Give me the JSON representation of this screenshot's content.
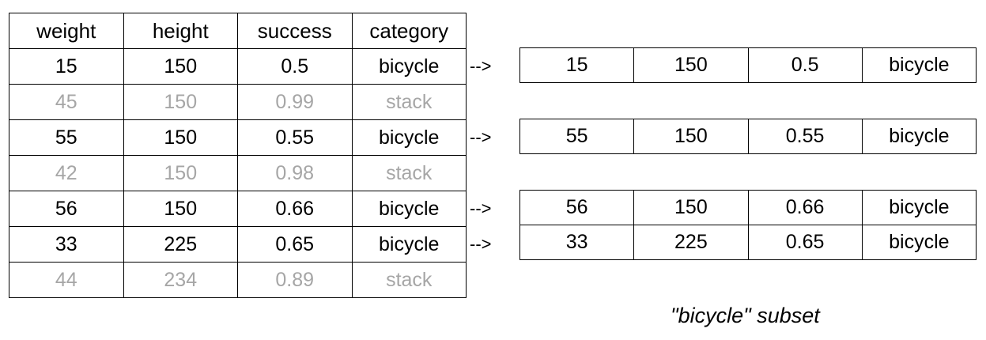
{
  "source_table": {
    "headers": [
      "weight",
      "height",
      "success",
      "category"
    ],
    "rows": [
      {
        "cells": [
          "15",
          "150",
          "0.5",
          "bicycle"
        ],
        "selected": true
      },
      {
        "cells": [
          "45",
          "150",
          "0.99",
          "stack"
        ],
        "selected": false
      },
      {
        "cells": [
          "55",
          "150",
          "0.55",
          "bicycle"
        ],
        "selected": true
      },
      {
        "cells": [
          "42",
          "150",
          "0.98",
          "stack"
        ],
        "selected": false
      },
      {
        "cells": [
          "56",
          "150",
          "0.66",
          "bicycle"
        ],
        "selected": true
      },
      {
        "cells": [
          "33",
          "225",
          "0.65",
          "bicycle"
        ],
        "selected": true
      },
      {
        "cells": [
          "44",
          "234",
          "0.89",
          "stack"
        ],
        "selected": false
      }
    ]
  },
  "arrow_text": "-->",
  "subset_label": "\"bicycle\" subset",
  "colors": {
    "selected_text": "#000000",
    "dimmed_text": "#a6a6a6",
    "border": "#000000"
  }
}
